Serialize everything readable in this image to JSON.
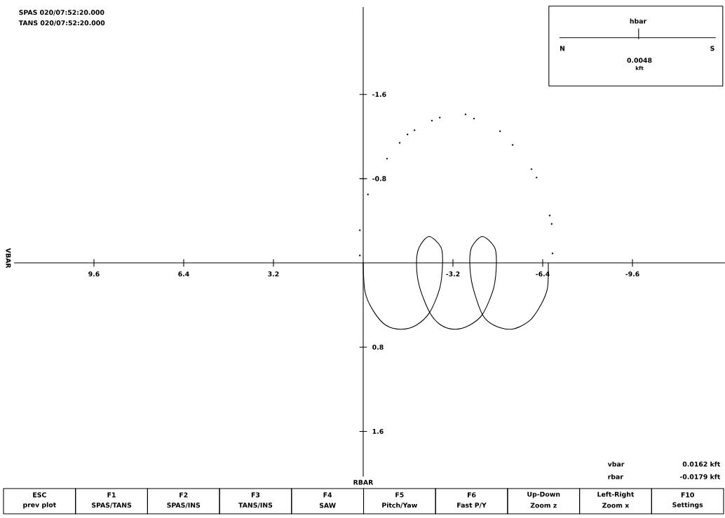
{
  "chart_data": {
    "type": "line",
    "xlim": [
      12.45,
      -12.9
    ],
    "ylim": [
      2.03,
      -2.43
    ],
    "xticks": [
      9.6,
      6.4,
      3.2,
      -3.2,
      -6.4,
      -9.6
    ],
    "yticks": [
      -1.6,
      -0.8,
      0.8,
      1.6
    ],
    "series": [
      {
        "type": "line",
        "color": "#000000",
        "marker": "none",
        "x": [
          0,
          -0.07,
          -0.37,
          -0.8,
          -1.35,
          -1.9,
          -2.37,
          -2.73,
          -2.83,
          -2.77,
          -2.35,
          -2.0,
          -1.9,
          -2.0,
          -2.37,
          -2.77,
          -3.28,
          -3.8,
          -4.25,
          -4.65,
          -4.75,
          -4.68,
          -4.25,
          -3.87,
          -3.8,
          -3.9,
          -4.25,
          -4.65,
          -5.28,
          -5.93,
          -6.35,
          -6.57,
          -6.6
        ],
        "values": [
          0,
          0.28,
          0.46,
          0.59,
          0.63,
          0.59,
          0.47,
          0.24,
          0,
          -0.15,
          -0.25,
          -0.15,
          0,
          0.22,
          0.47,
          0.59,
          0.63,
          0.59,
          0.49,
          0.24,
          0,
          -0.15,
          -0.25,
          -0.15,
          0,
          0.22,
          0.49,
          0.59,
          0.63,
          0.55,
          0.39,
          0.24,
          0
        ]
      },
      {
        "type": "scatter",
        "color": "#000000",
        "marker": "circle",
        "x": [
          -6.75,
          -6.72,
          -6.65,
          -6.18,
          -6.0,
          -5.33,
          -4.88,
          -3.95,
          -3.65,
          -2.73,
          -2.45,
          -1.83,
          -1.58,
          -1.3,
          -0.85,
          -0.17,
          0.12,
          0.12
        ],
        "values": [
          -0.09,
          -0.37,
          -0.45,
          -0.81,
          -0.89,
          -1.12,
          -1.25,
          -1.37,
          -1.41,
          -1.38,
          -1.35,
          -1.26,
          -1.22,
          -1.14,
          -0.99,
          -0.65,
          -0.31,
          -0.07
        ]
      }
    ],
    "annotations": [
      "SPAS 020/07:52:20.000",
      "TANS 020/07:52:20.000",
      "hbar",
      "N",
      "S",
      "0.0048",
      "kft",
      "vbar",
      "0.0162 kft",
      "rbar",
      "-0.0179 kft",
      "ESC",
      "prev plot",
      "F1",
      "SPAS/TANS",
      "F2",
      "SPAS/INS",
      "F3",
      "TANS/INS",
      "F4",
      "SAW",
      "F5",
      "Pitch/Yaw",
      "F6",
      "Fast P/Y",
      "Up-Down",
      "Zoom z",
      "Left-Right",
      "Zoom x",
      "F10",
      "Settings",
      "VBAR",
      "RBAR"
    ]
  }
}
